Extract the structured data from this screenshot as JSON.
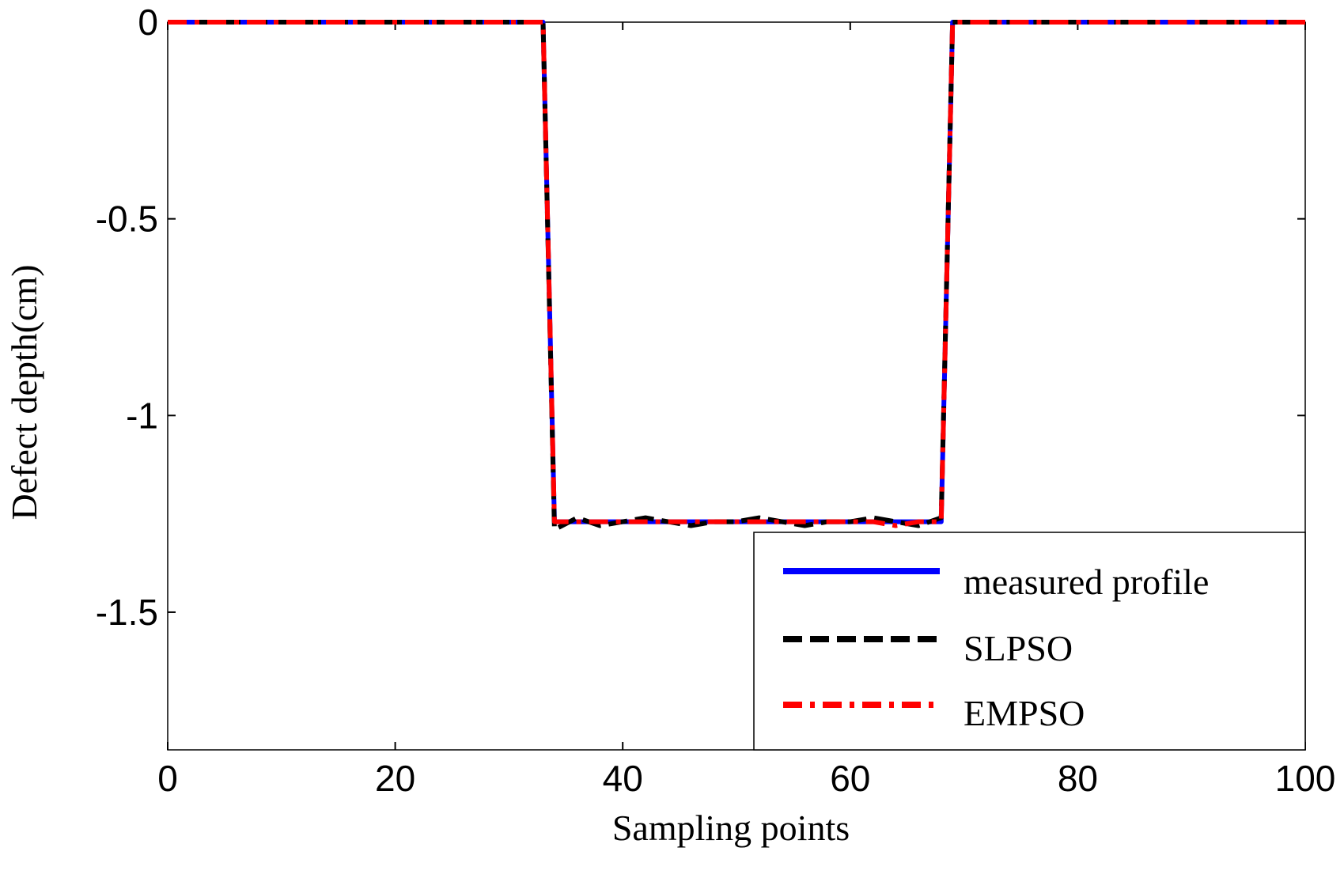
{
  "chart_data": {
    "type": "line",
    "xlabel": "Sampling points",
    "ylabel": "Defect depth(cm)",
    "xlim": [
      0,
      100
    ],
    "ylim": [
      -1.85,
      0
    ],
    "xticks": [
      0,
      20,
      40,
      60,
      80,
      100
    ],
    "xtick_labels": [
      "0",
      "20",
      "40",
      "60",
      "80",
      "100"
    ],
    "yticks": [
      0,
      -0.5,
      -1,
      -1.5
    ],
    "ytick_labels": [
      "0",
      "-0.5",
      "-1",
      "-1.5"
    ],
    "grid": false,
    "legend_position": "bottom-right",
    "series": [
      {
        "name": "measured profile",
        "color": "#0000ff",
        "style": "solid",
        "x": [
          0,
          33,
          34,
          68,
          69,
          100
        ],
        "y": [
          0,
          0,
          -1.27,
          -1.27,
          0,
          0
        ]
      },
      {
        "name": "SLPSO",
        "color": "#000000",
        "style": "dashed",
        "x": [
          0,
          33,
          34,
          36,
          38,
          40,
          42,
          44,
          46,
          48,
          50,
          52,
          54,
          56,
          58,
          60,
          62,
          64,
          66,
          68,
          69,
          100
        ],
        "y": [
          0,
          0,
          -1.29,
          -1.26,
          -1.28,
          -1.27,
          -1.26,
          -1.27,
          -1.28,
          -1.27,
          -1.27,
          -1.26,
          -1.27,
          -1.28,
          -1.27,
          -1.27,
          -1.26,
          -1.27,
          -1.28,
          -1.26,
          0,
          0
        ]
      },
      {
        "name": "EMPSO",
        "color": "#ff0000",
        "style": "dashdot",
        "x": [
          0,
          33,
          34,
          36,
          38,
          40,
          42,
          44,
          46,
          48,
          50,
          52,
          54,
          56,
          58,
          60,
          62,
          64,
          66,
          68,
          69,
          100
        ],
        "y": [
          0,
          0,
          -1.27,
          -1.27,
          -1.27,
          -1.27,
          -1.27,
          -1.27,
          -1.27,
          -1.27,
          -1.27,
          -1.27,
          -1.27,
          -1.27,
          -1.27,
          -1.27,
          -1.27,
          -1.28,
          -1.27,
          -1.27,
          0,
          0
        ]
      }
    ]
  }
}
